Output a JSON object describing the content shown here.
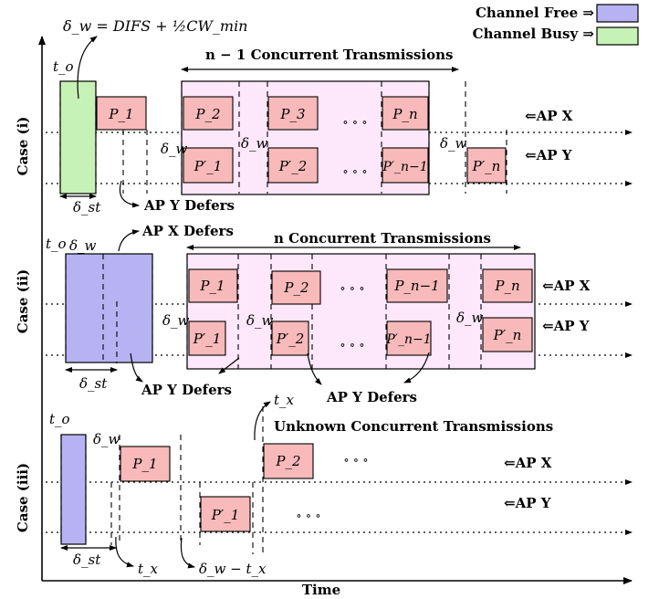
{
  "legend": {
    "free_label": "Channel Free ⇒",
    "busy_label": "Channel Busy ⇒",
    "free_color": "#b7b3f3",
    "busy_color": "#c6f2b5"
  },
  "colors": {
    "packet_fill": "#f7b9b9",
    "concurrent_fill": "#fde7fb"
  },
  "formula": "δ_w = DIFS + ½CW_min",
  "axis": {
    "x_label": "Time"
  },
  "case1": {
    "label": "Case (i)",
    "t0": "t_o",
    "concurrent_label": "n − 1 Concurrent Transmissions",
    "ap_x": "⇐AP X",
    "ap_y": "⇐AP Y",
    "defer_y": "AP Y Defers",
    "delta_st": "δ_st",
    "delta_w_1": "δ_w",
    "delta_w_2": "δ_w",
    "delta_w_3": "δ_w",
    "dots_x": "∘ ∘ ∘",
    "dots_y": "∘ ∘ ∘",
    "packets_x": [
      "P_1",
      "P_2",
      "P_3",
      "P_n"
    ],
    "packets_y": [
      "P′_1",
      "P′_2",
      "P′_n−1",
      "P′_n"
    ]
  },
  "case2": {
    "label": "Case (ii)",
    "t0": "t_o",
    "concurrent_label": "n Concurrent Transmissions",
    "ap_x": "⇐AP X",
    "ap_y": "⇐AP Y",
    "defer_x": "AP X Defers",
    "defer_y1": "AP Y Defers",
    "defer_y2": "AP Y Defers",
    "delta_st": "δ_st",
    "delta_w_0": "δ_w",
    "delta_w_1": "δ_w",
    "delta_w_2": "δ_w",
    "delta_w_3": "δ_w",
    "dots_x": "∘ ∘ ∘",
    "dots_y": "∘ ∘ ∘",
    "packets_x": [
      "P_1",
      "P_2",
      "P_n−1",
      "P_n"
    ],
    "packets_y": [
      "P′_1",
      "P′_2",
      "P′_n−1",
      "P′_n"
    ]
  },
  "case3": {
    "label": "Case (iii)",
    "t0": "t_o",
    "unknown_label": "Unknown Concurrent Transmissions",
    "ap_x": "⇐AP X",
    "ap_y": "⇐AP Y",
    "delta_st": "δ_st",
    "delta_w": "δ_w",
    "tx_top": "t_x",
    "tx_bottom": "t_x",
    "dw_minus_tx": "δ_w − t_x",
    "dots_x": "∘ ∘ ∘",
    "dots_y": "∘ ∘ ∘",
    "packets_x": [
      "P_1",
      "P_2"
    ],
    "packets_y": [
      "P′_1"
    ]
  }
}
